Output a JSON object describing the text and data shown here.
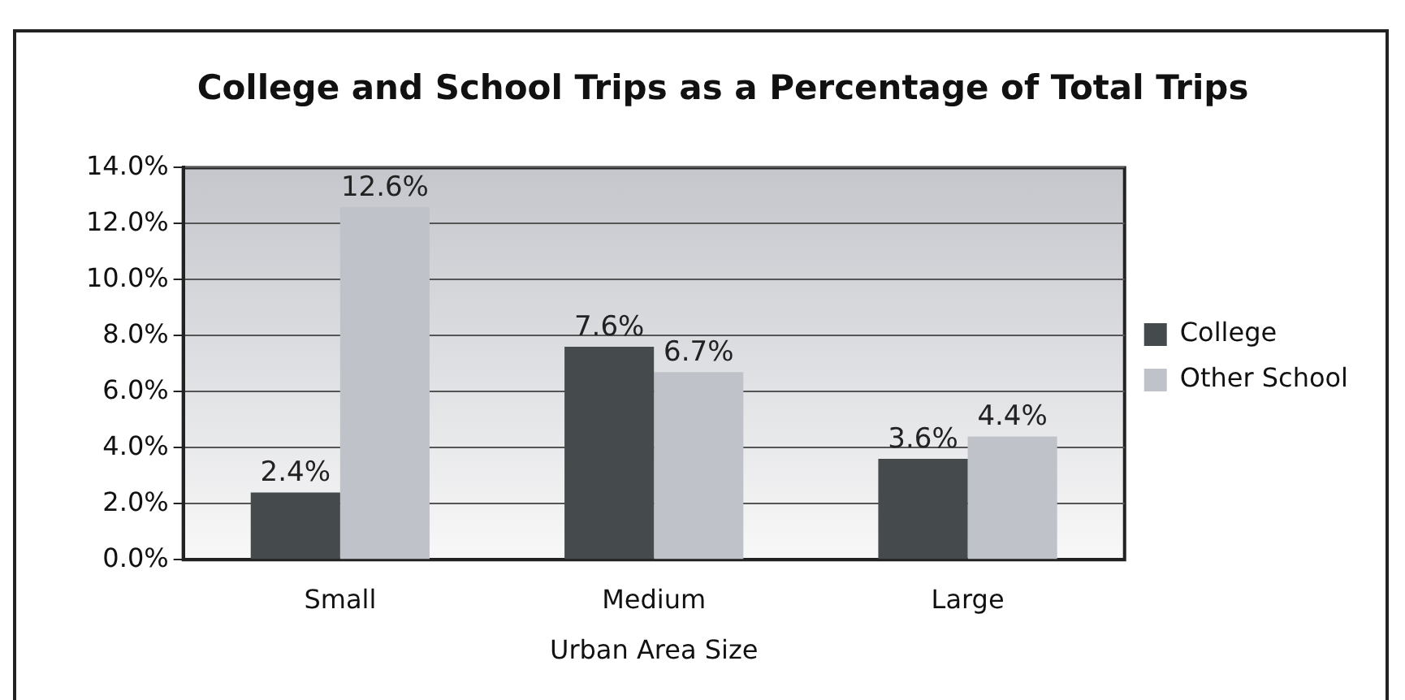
{
  "chart_data": {
    "type": "bar",
    "title": "College and School Trips as a Percentage of Total Trips",
    "xlabel": "Urban Area Size",
    "categories": [
      "Small",
      "Medium",
      "Large"
    ],
    "series": [
      {
        "name": "College",
        "color": "#454b4d",
        "values": [
          2.4,
          7.6,
          3.6
        ],
        "value_labels": [
          "2.4%",
          "7.6%",
          "3.6%"
        ]
      },
      {
        "name": "Other School",
        "color": "#c0c2ca",
        "values": [
          12.6,
          6.7,
          4.4
        ],
        "value_labels": [
          "12.6%",
          "6.7%",
          "4.4%"
        ]
      }
    ],
    "ylim": [
      0,
      14
    ],
    "yticks": [
      {
        "value": 0,
        "label": "0.0%"
      },
      {
        "value": 2,
        "label": "2.0%"
      },
      {
        "value": 4,
        "label": "4.0%"
      },
      {
        "value": 6,
        "label": "6.0%"
      },
      {
        "value": 8,
        "label": "8.0%"
      },
      {
        "value": 10,
        "label": "10.0%"
      },
      {
        "value": 12,
        "label": "12.0%"
      },
      {
        "value": 14,
        "label": "14.0%"
      }
    ],
    "grid": "y",
    "legend": "right"
  }
}
